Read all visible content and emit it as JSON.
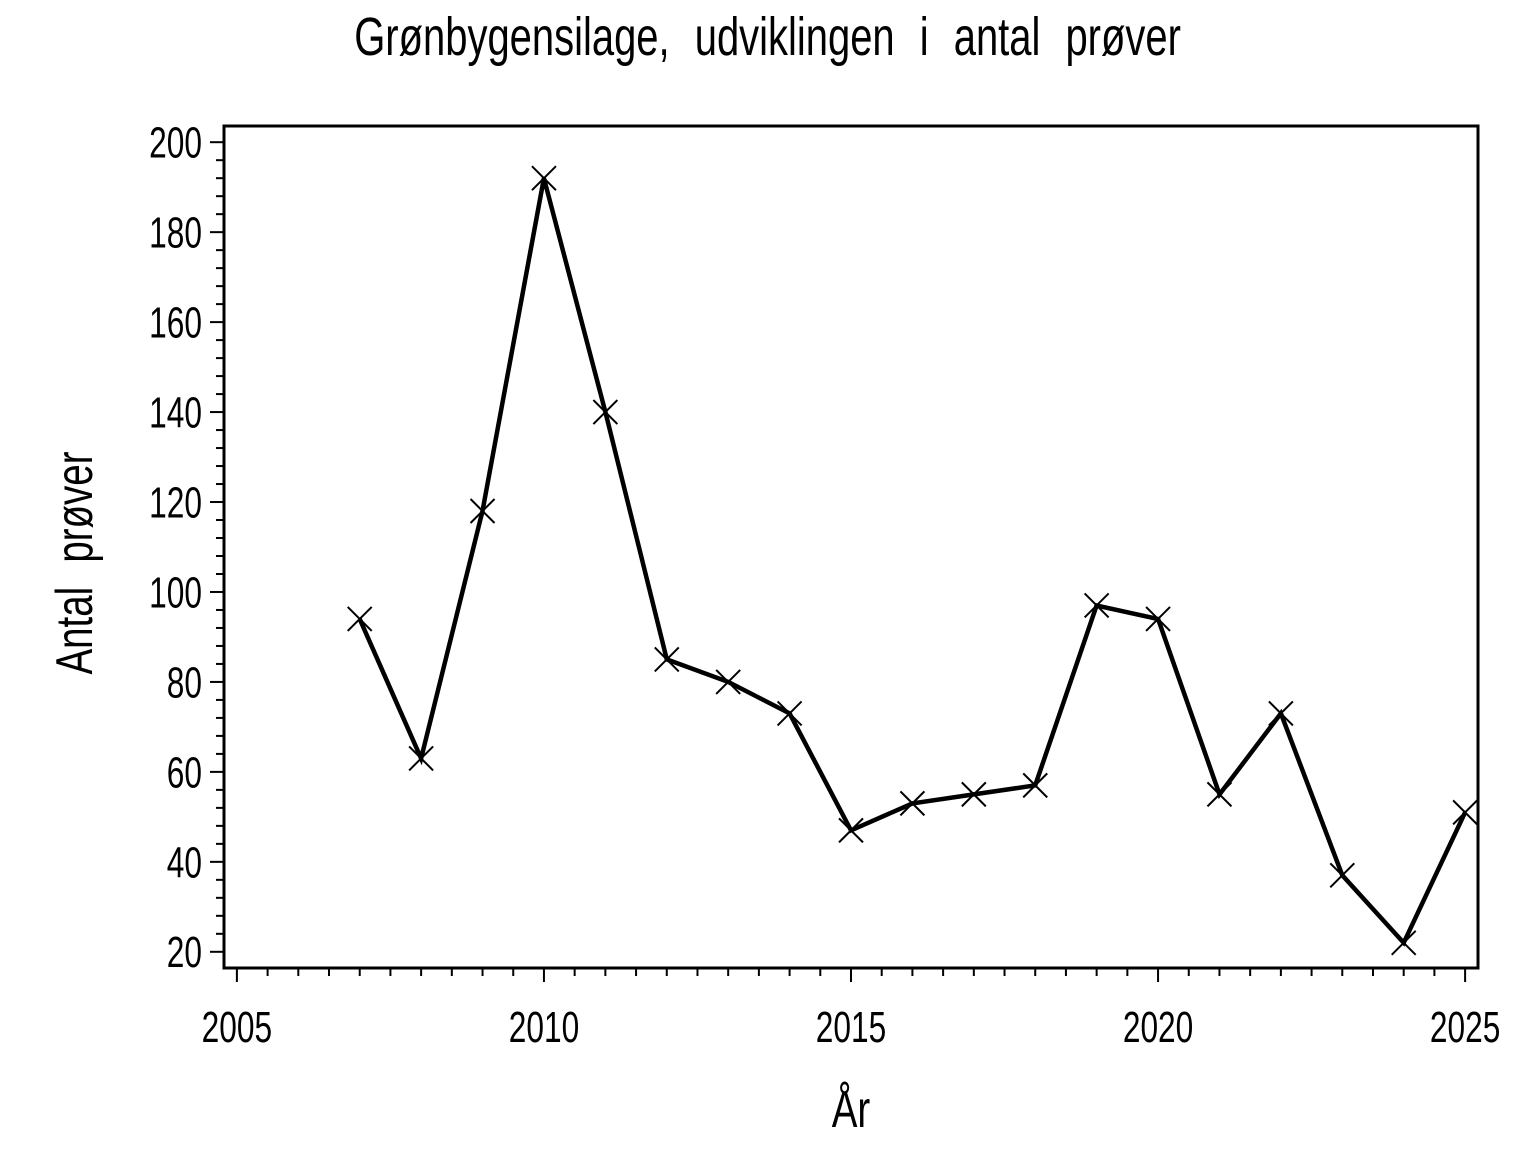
{
  "page": {
    "background_color": "#FFFFFF",
    "foreground_color": "#000000"
  },
  "chart_data": {
    "type": "line",
    "title": "Grønbygensilage, udviklingen i antal prøver",
    "xlabel": "År",
    "ylabel": "Antal prøver",
    "x": [
      2007,
      2008,
      2009,
      2010,
      2011,
      2012,
      2013,
      2014,
      2015,
      2016,
      2017,
      2018,
      2019,
      2020,
      2021,
      2022,
      2023,
      2024,
      2025
    ],
    "y": [
      94,
      63,
      118,
      192,
      140,
      85,
      80,
      73,
      47,
      53,
      55,
      57,
      97,
      94,
      55,
      73,
      37,
      22,
      51
    ],
    "marker": "x",
    "line_color": "#000000",
    "marker_color": "#000000",
    "xlim": [
      2004.79,
      2025.21
    ],
    "ylim": [
      16.4,
      203.6
    ],
    "x_major_ticks": [
      2005,
      2010,
      2015,
      2020,
      2025
    ],
    "x_major_tick_labels": [
      "2005",
      "2010",
      "2015",
      "2020",
      "2025"
    ],
    "x_minor_step": 0.5,
    "y_major_ticks": [
      20,
      40,
      60,
      80,
      100,
      120,
      140,
      160,
      180,
      200
    ],
    "y_major_tick_labels": [
      "20",
      "40",
      "60",
      "80",
      "100",
      "120",
      "140",
      "160",
      "180",
      "200"
    ],
    "y_minor_step": 4,
    "grid": false,
    "legend": false
  }
}
